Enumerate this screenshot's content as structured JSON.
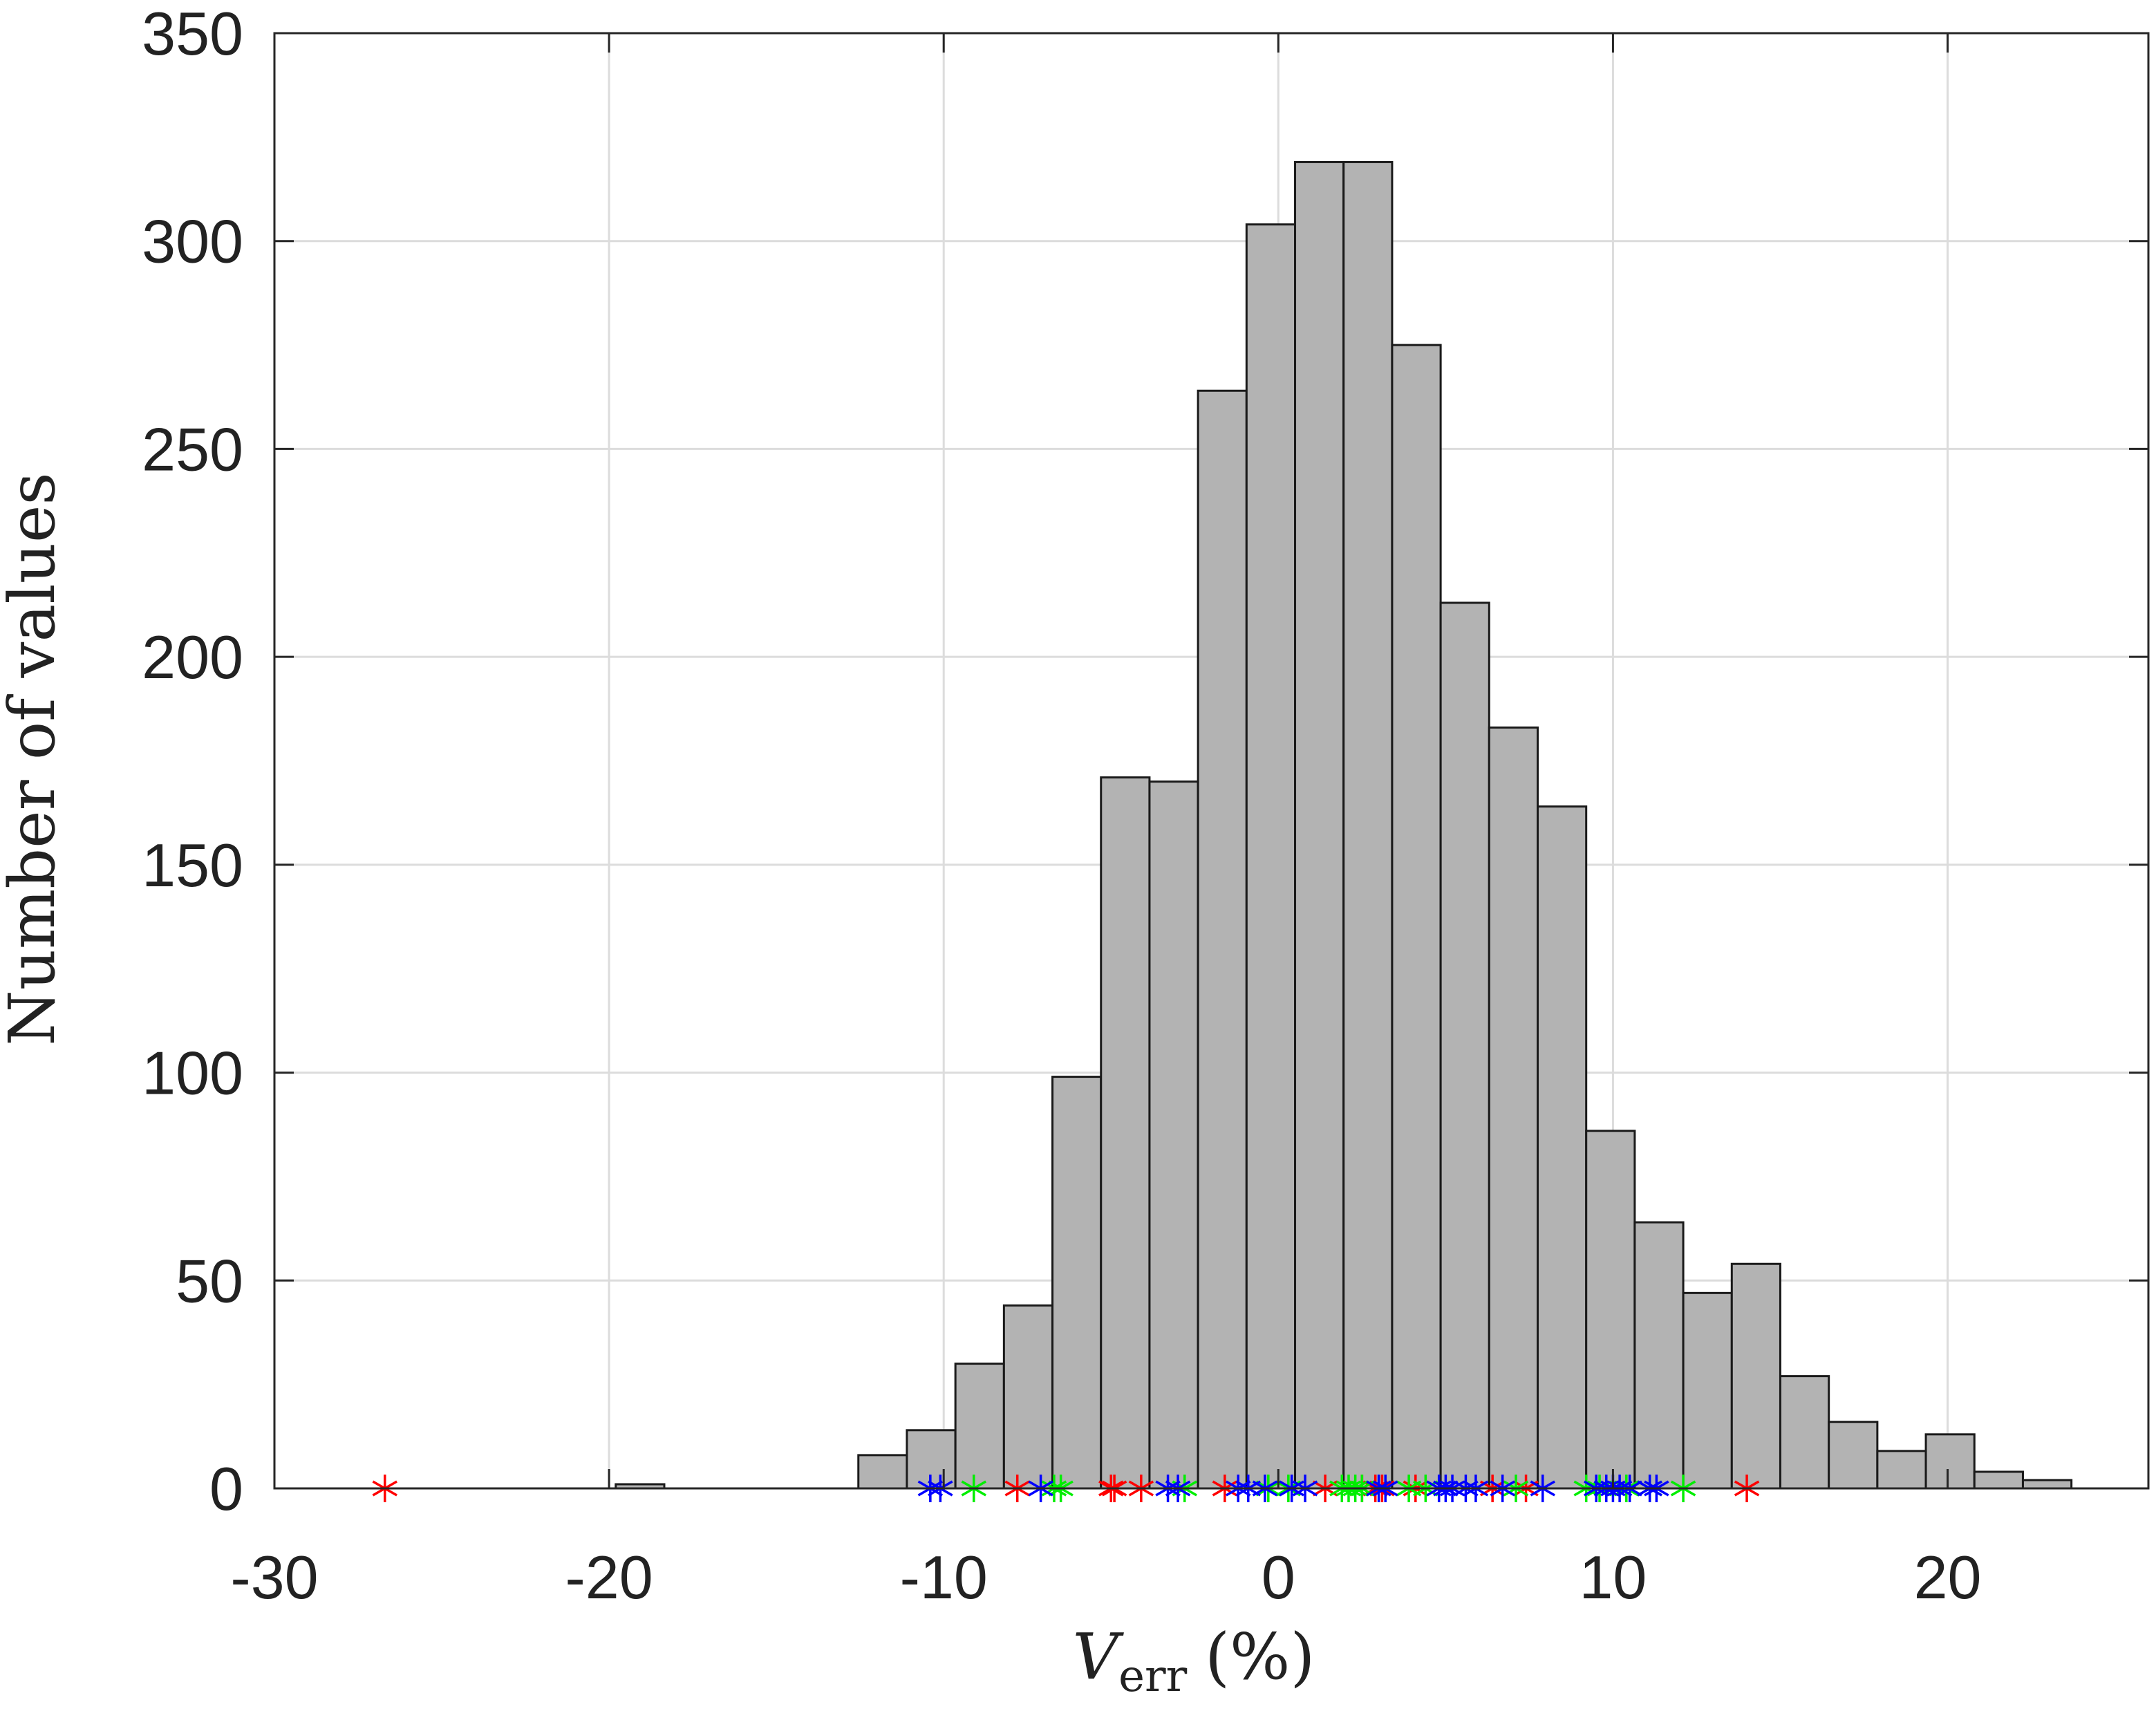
{
  "chart_data": {
    "type": "histogram",
    "title": "",
    "xlabel": "V",
    "xlabel_subscript": "err",
    "xlabel_unit": "(%)",
    "ylabel": "Number of values",
    "xlim": [
      -30,
      26
    ],
    "ylim": [
      0,
      350
    ],
    "xticks": [
      -30,
      -20,
      -10,
      0,
      10,
      20
    ],
    "yticks": [
      0,
      50,
      100,
      150,
      200,
      250,
      300,
      350
    ],
    "grid": true,
    "bar_color": "#b3b3b3",
    "bar_edge_color": "#1a1a1a",
    "bins": [
      {
        "x0": -19.8,
        "x1": -18.35,
        "count": 1
      },
      {
        "x0": -12.55,
        "x1": -11.1,
        "count": 8
      },
      {
        "x0": -11.1,
        "x1": -9.65,
        "count": 14
      },
      {
        "x0": -9.65,
        "x1": -8.2,
        "count": 30
      },
      {
        "x0": -8.2,
        "x1": -6.75,
        "count": 44
      },
      {
        "x0": -6.75,
        "x1": -5.3,
        "count": 99
      },
      {
        "x0": -5.3,
        "x1": -3.85,
        "count": 171
      },
      {
        "x0": -3.85,
        "x1": -2.4,
        "count": 170
      },
      {
        "x0": -2.4,
        "x1": -0.95,
        "count": 264
      },
      {
        "x0": -0.95,
        "x1": 0.5,
        "count": 304
      },
      {
        "x0": 0.5,
        "x1": 1.95,
        "count": 319
      },
      {
        "x0": 1.95,
        "x1": 3.4,
        "count": 319
      },
      {
        "x0": 3.4,
        "x1": 4.85,
        "count": 275
      },
      {
        "x0": 4.85,
        "x1": 6.3,
        "count": 213
      },
      {
        "x0": 6.3,
        "x1": 7.75,
        "count": 183
      },
      {
        "x0": 7.75,
        "x1": 9.2,
        "count": 164
      },
      {
        "x0": 9.2,
        "x1": 10.65,
        "count": 86
      },
      {
        "x0": 10.65,
        "x1": 12.1,
        "count": 64
      },
      {
        "x0": 12.1,
        "x1": 13.55,
        "count": 47
      },
      {
        "x0": 13.55,
        "x1": 15.0,
        "count": 54
      },
      {
        "x0": 15.0,
        "x1": 16.45,
        "count": 27
      },
      {
        "x0": 16.45,
        "x1": 17.9,
        "count": 16
      },
      {
        "x0": 17.9,
        "x1": 19.35,
        "count": 9
      },
      {
        "x0": 19.35,
        "x1": 20.8,
        "count": 13
      },
      {
        "x0": 20.8,
        "x1": 22.25,
        "count": 4
      },
      {
        "x0": 22.25,
        "x1": 23.7,
        "count": 2
      }
    ],
    "markers": [
      {
        "color": "#ff0000",
        "x": [
          -26.7,
          -7.8,
          -5.0,
          -4.9,
          -4.1,
          -1.6,
          1.4,
          2.5,
          2.9,
          3.1,
          4.1,
          6.4,
          7.4,
          14.0
        ]
      },
      {
        "color": "#00ee00",
        "x": [
          -9.1,
          -6.7,
          -6.5,
          -2.8,
          -0.3,
          0.3,
          1.9,
          2.1,
          2.3,
          2.5,
          3.9,
          4.4,
          7.1,
          9.2,
          9.6,
          10.4,
          11.1,
          12.1
        ]
      },
      {
        "color": "#0000ff",
        "x": [
          -10.4,
          -10.1,
          -7.1,
          -3.3,
          -3.0,
          -1.2,
          -0.9,
          -0.4,
          0.4,
          0.8,
          3.0,
          3.2,
          4.8,
          5.0,
          5.2,
          5.6,
          5.9,
          6.7,
          7.9,
          9.5,
          9.8,
          10.0,
          10.2,
          10.5,
          11.1,
          11.3
        ]
      }
    ]
  }
}
